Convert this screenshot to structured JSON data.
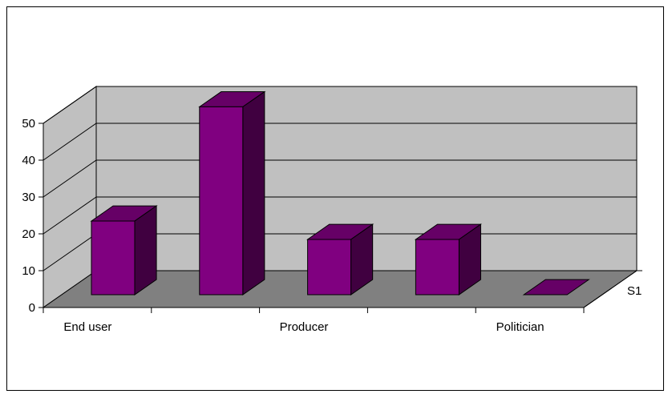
{
  "chart_data": {
    "type": "bar",
    "categories": [
      "End user",
      "",
      "Producer",
      "",
      "Politician"
    ],
    "series": [
      {
        "name": "S1",
        "values": [
          20,
          51,
          15,
          15,
          0
        ]
      }
    ],
    "ylim": [
      0,
      50
    ],
    "yticks": [
      "0",
      "10",
      "20",
      "30",
      "40",
      "50"
    ],
    "grid": true,
    "three_d": true,
    "colors": {
      "bar_front": "#800080",
      "bar_side": "#400040",
      "bar_top": "#660066",
      "back_wall": "#c0c0c0",
      "side_wall": "#c0c0c0",
      "floor": "#808080"
    }
  }
}
